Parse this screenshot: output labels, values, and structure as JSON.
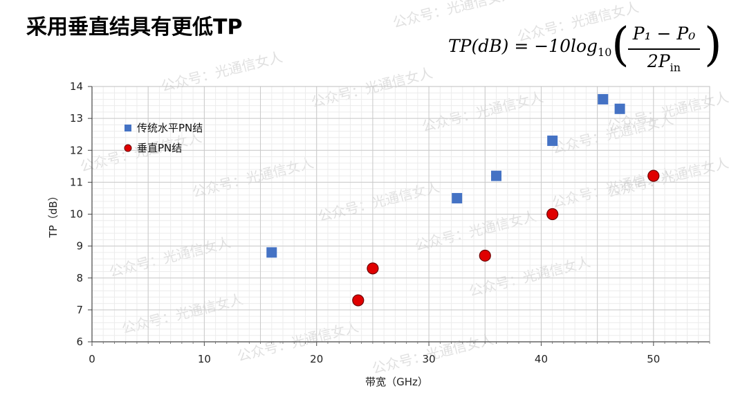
{
  "page": {
    "title": "采用垂直结具有更低TP",
    "watermark": "公众号：光通信女人",
    "formula": {
      "lhs": "TP(dB) = −10log",
      "sub": "10",
      "numerator": "P₁ − P₀",
      "denominator": "2P",
      "den_sub": "in"
    }
  },
  "chart_data": {
    "type": "scatter",
    "title": "",
    "xlabel": "带宽（GHz）",
    "ylabel": "TP（dB）",
    "xlim": [
      0,
      55
    ],
    "ylim": [
      6,
      14
    ],
    "x_ticks": [
      0,
      10,
      20,
      30,
      40,
      50
    ],
    "y_ticks": [
      6,
      7,
      8,
      9,
      10,
      11,
      12,
      13,
      14
    ],
    "grid": true,
    "legend": "top-left",
    "series": [
      {
        "name": "传统水平PN结",
        "marker": "square",
        "color": "#4472C4",
        "points": [
          [
            16,
            8.8
          ],
          [
            32.5,
            10.5
          ],
          [
            36,
            11.2
          ],
          [
            41,
            12.3
          ],
          [
            45.5,
            13.6
          ],
          [
            47,
            13.3
          ]
        ]
      },
      {
        "name": "垂直PN结",
        "marker": "circle",
        "color": "#E00000",
        "points": [
          [
            23.7,
            7.3
          ],
          [
            25,
            8.3
          ],
          [
            35,
            8.7
          ],
          [
            41,
            10.0
          ],
          [
            50,
            11.2
          ]
        ]
      }
    ]
  }
}
